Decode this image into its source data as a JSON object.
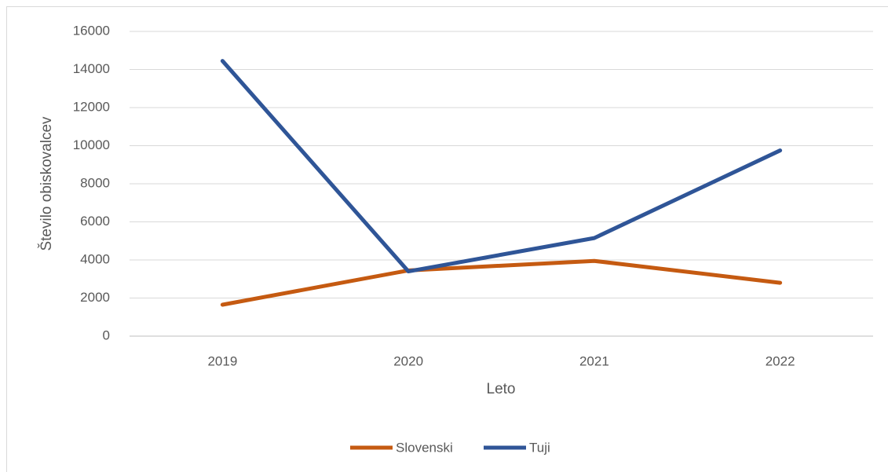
{
  "chart_data": {
    "type": "line",
    "x_label": "Leto",
    "y_label": "Število obiskovalcev",
    "categories": [
      "2019",
      "2020",
      "2021",
      "2022"
    ],
    "series": [
      {
        "name": "Slovenski",
        "color": "#c55a11",
        "values": [
          1650,
          3450,
          3950,
          2800
        ]
      },
      {
        "name": "Tuji",
        "color": "#2f5597",
        "values": [
          14450,
          3400,
          5150,
          9750
        ]
      }
    ],
    "ylim": [
      0,
      16000
    ],
    "yticks": [
      0,
      2000,
      4000,
      6000,
      8000,
      10000,
      12000,
      14000,
      16000
    ],
    "grid": true,
    "legend": "bottom"
  }
}
